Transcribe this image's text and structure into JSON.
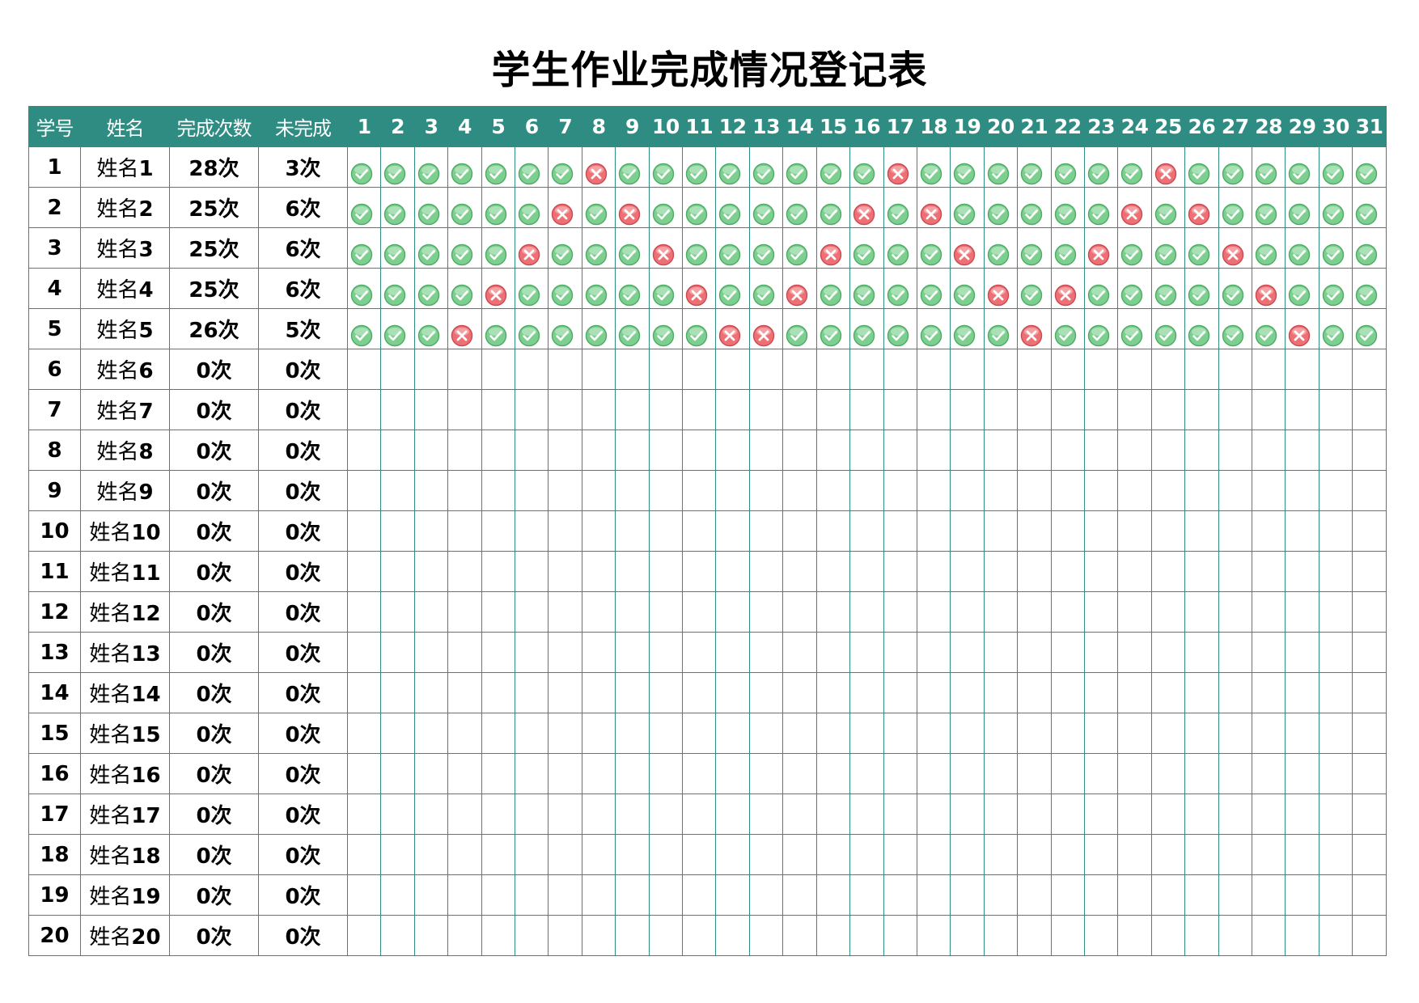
{
  "title": "学生作业完成情况登记表",
  "headers": {
    "id": "学号",
    "name": "姓名",
    "completed": "完成次数",
    "uncompleted": "未完成",
    "days": [
      "1",
      "2",
      "3",
      "4",
      "5",
      "6",
      "7",
      "8",
      "9",
      "10",
      "11",
      "12",
      "13",
      "14",
      "15",
      "16",
      "17",
      "18",
      "19",
      "20",
      "21",
      "22",
      "23",
      "24",
      "25",
      "26",
      "27",
      "28",
      "29",
      "30",
      "31"
    ]
  },
  "icons": {
    "done": "green-check-circle-icon",
    "missed": "red-cross-circle-icon"
  },
  "colors": {
    "header_bg": "#2e8c82",
    "grid": "#2f8c82",
    "done": "#7ccf8f",
    "missed": "#ee6f74"
  },
  "students": [
    {
      "id": "1",
      "name": "姓名1",
      "completed": "28次",
      "uncompleted": "3次",
      "marks": [
        1,
        1,
        1,
        1,
        1,
        1,
        1,
        0,
        1,
        1,
        1,
        1,
        1,
        1,
        1,
        1,
        0,
        1,
        1,
        1,
        1,
        1,
        1,
        1,
        0,
        1,
        1,
        1,
        1,
        1,
        1
      ]
    },
    {
      "id": "2",
      "name": "姓名2",
      "completed": "25次",
      "uncompleted": "6次",
      "marks": [
        1,
        1,
        1,
        1,
        1,
        1,
        0,
        1,
        0,
        1,
        1,
        1,
        1,
        1,
        1,
        0,
        1,
        0,
        1,
        1,
        1,
        1,
        1,
        0,
        1,
        0,
        1,
        1,
        1,
        1,
        1
      ]
    },
    {
      "id": "3",
      "name": "姓名3",
      "completed": "25次",
      "uncompleted": "6次",
      "marks": [
        1,
        1,
        1,
        1,
        1,
        0,
        1,
        1,
        1,
        0,
        1,
        1,
        1,
        1,
        0,
        1,
        1,
        1,
        0,
        1,
        1,
        1,
        0,
        1,
        1,
        1,
        0,
        1,
        1,
        1,
        1
      ]
    },
    {
      "id": "4",
      "name": "姓名4",
      "completed": "25次",
      "uncompleted": "6次",
      "marks": [
        1,
        1,
        1,
        1,
        0,
        1,
        1,
        1,
        1,
        1,
        0,
        1,
        1,
        0,
        1,
        1,
        1,
        1,
        1,
        0,
        1,
        0,
        1,
        1,
        1,
        1,
        1,
        0,
        1,
        1,
        1
      ]
    },
    {
      "id": "5",
      "name": "姓名5",
      "completed": "26次",
      "uncompleted": "5次",
      "marks": [
        1,
        1,
        1,
        0,
        1,
        1,
        1,
        1,
        1,
        1,
        1,
        0,
        0,
        1,
        1,
        1,
        1,
        1,
        1,
        1,
        0,
        1,
        1,
        1,
        1,
        1,
        1,
        1,
        0,
        1,
        1
      ]
    },
    {
      "id": "6",
      "name": "姓名6",
      "completed": "0次",
      "uncompleted": "0次",
      "marks": []
    },
    {
      "id": "7",
      "name": "姓名7",
      "completed": "0次",
      "uncompleted": "0次",
      "marks": []
    },
    {
      "id": "8",
      "name": "姓名8",
      "completed": "0次",
      "uncompleted": "0次",
      "marks": []
    },
    {
      "id": "9",
      "name": "姓名9",
      "completed": "0次",
      "uncompleted": "0次",
      "marks": []
    },
    {
      "id": "10",
      "name": "姓名10",
      "completed": "0次",
      "uncompleted": "0次",
      "marks": []
    },
    {
      "id": "11",
      "name": "姓名11",
      "completed": "0次",
      "uncompleted": "0次",
      "marks": []
    },
    {
      "id": "12",
      "name": "姓名12",
      "completed": "0次",
      "uncompleted": "0次",
      "marks": []
    },
    {
      "id": "13",
      "name": "姓名13",
      "completed": "0次",
      "uncompleted": "0次",
      "marks": []
    },
    {
      "id": "14",
      "name": "姓名14",
      "completed": "0次",
      "uncompleted": "0次",
      "marks": []
    },
    {
      "id": "15",
      "name": "姓名15",
      "completed": "0次",
      "uncompleted": "0次",
      "marks": []
    },
    {
      "id": "16",
      "name": "姓名16",
      "completed": "0次",
      "uncompleted": "0次",
      "marks": []
    },
    {
      "id": "17",
      "name": "姓名17",
      "completed": "0次",
      "uncompleted": "0次",
      "marks": []
    },
    {
      "id": "18",
      "name": "姓名18",
      "completed": "0次",
      "uncompleted": "0次",
      "marks": []
    },
    {
      "id": "19",
      "name": "姓名19",
      "completed": "0次",
      "uncompleted": "0次",
      "marks": []
    },
    {
      "id": "20",
      "name": "姓名20",
      "completed": "0次",
      "uncompleted": "0次",
      "marks": []
    }
  ]
}
